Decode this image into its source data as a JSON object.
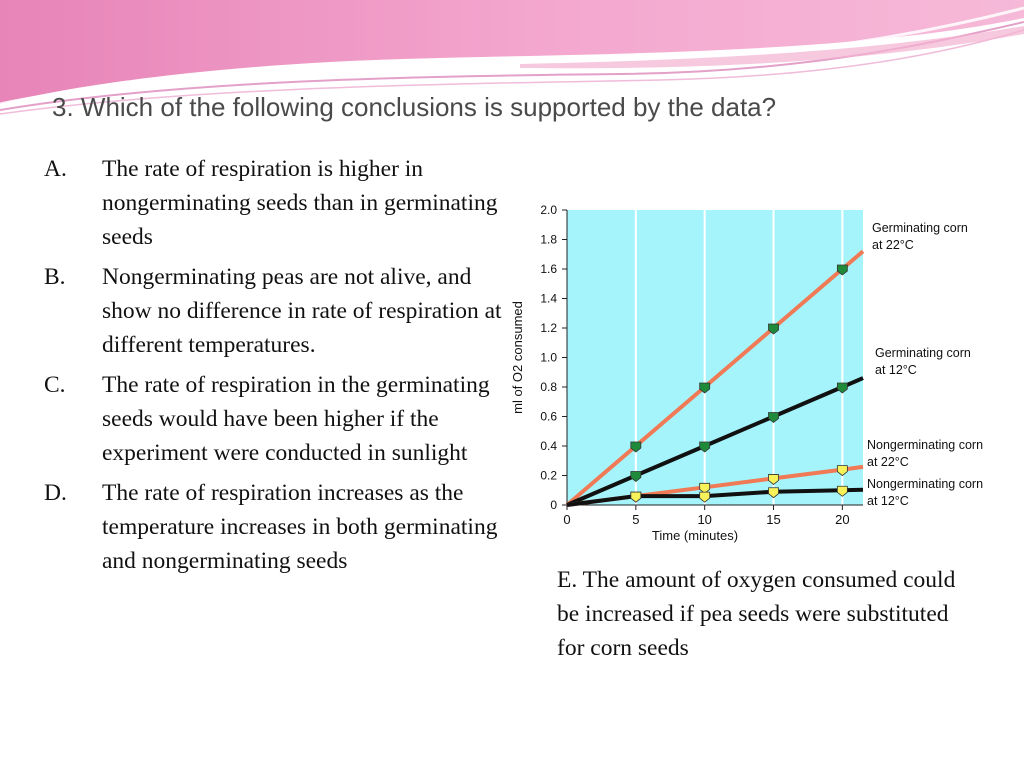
{
  "question": "3. Which of the following conclusions is supported by the data?",
  "options": [
    {
      "letter": "A.",
      "text": "The rate of respiration is higher in nongerminating seeds than in germinating seeds"
    },
    {
      "letter": "B.",
      "text": "Nongerminating peas are not alive, and show no difference in rate of respiration at different temperatures."
    },
    {
      "letter": "C.",
      "text": "The rate of respiration in the germinating seeds would have been higher if the experiment were conducted in sunlight"
    },
    {
      "letter": "D.",
      "text": "The rate of respiration increases as the temperature increases in both germinating and nongerminating seeds"
    }
  ],
  "option_e": "E. The amount of oxygen consumed could be increased if pea seeds were substituted for corn seeds",
  "colors": {
    "plot_bg": "#a6f4fb",
    "grid": "#ffffff",
    "line_22": "#ef7a55",
    "line_12": "#111111",
    "marker_germ": "#1f8a3a",
    "marker_nongerm": "#f7f25a",
    "banner_pink": "#e47fb3",
    "banner_light": "#f7c6e0"
  },
  "chart_data": {
    "type": "line",
    "title": "",
    "xlabel": "Time (minutes)",
    "ylabel": "ml of O2 consumed",
    "xlim": [
      0,
      21.5
    ],
    "ylim": [
      0,
      2.0
    ],
    "x_ticks": [
      0,
      5,
      10,
      15,
      20
    ],
    "y_ticks": [
      0,
      0.2,
      0.4,
      0.6,
      0.8,
      1.0,
      1.2,
      1.4,
      1.6,
      1.8,
      2.0
    ],
    "y_tick_labels": [
      "0",
      "0.2",
      "0.4",
      "0.6",
      "0.8",
      "1.0",
      "1.2",
      "1.4",
      "1.6",
      "1.8",
      "2.0"
    ],
    "grid": "vertical",
    "series": [
      {
        "name": "Germinating corn at 22°C",
        "label_lines": [
          "Germinating corn",
          "at 22°C"
        ],
        "line": "line_22",
        "marker": "marker_germ",
        "x": [
          5,
          10,
          15,
          20
        ],
        "values": [
          0.4,
          0.8,
          1.2,
          1.6
        ]
      },
      {
        "name": "Germinating corn at 12°C",
        "label_lines": [
          "Germinating corn",
          "at 12°C"
        ],
        "line": "line_12",
        "marker": "marker_germ",
        "x": [
          5,
          10,
          15,
          20
        ],
        "values": [
          0.2,
          0.4,
          0.6,
          0.8
        ]
      },
      {
        "name": "Nongerminating corn at 22°C",
        "label_lines": [
          "Nongerminating corn",
          "at 22°C"
        ],
        "line": "line_22",
        "marker": "marker_nongerm",
        "x": [
          5,
          10,
          15,
          20
        ],
        "values": [
          0.06,
          0.12,
          0.18,
          0.24
        ]
      },
      {
        "name": "Nongerminating corn at 12°C",
        "label_lines": [
          "Nongerminating corn",
          "at 12°C"
        ],
        "line": "line_12",
        "marker": "marker_nongerm",
        "x": [
          5,
          10,
          15,
          20
        ],
        "values": [
          0.06,
          0.06,
          0.09,
          0.1
        ]
      }
    ]
  }
}
